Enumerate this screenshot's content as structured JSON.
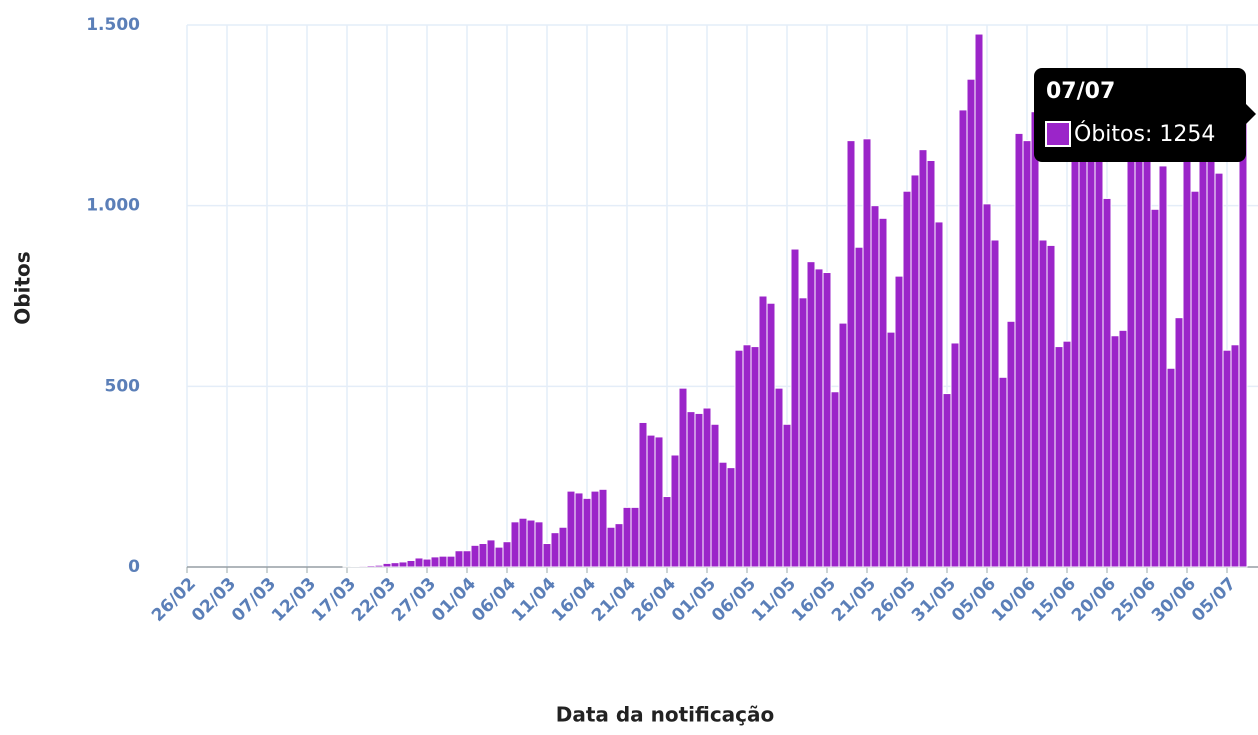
{
  "chart_data": {
    "type": "bar",
    "y_label": "Obitos",
    "x_label": "Data da notificação",
    "categories": [
      "26/02",
      null,
      null,
      null,
      null,
      "02/03",
      null,
      null,
      null,
      null,
      "07/03",
      null,
      null,
      null,
      null,
      "12/03",
      null,
      null,
      null,
      null,
      "17/03",
      null,
      null,
      null,
      null,
      "22/03",
      null,
      null,
      null,
      null,
      "27/03",
      null,
      null,
      null,
      null,
      "01/04",
      null,
      null,
      null,
      null,
      "06/04",
      null,
      null,
      null,
      null,
      "11/04",
      null,
      null,
      null,
      null,
      "16/04",
      null,
      null,
      null,
      null,
      "21/04",
      null,
      null,
      null,
      null,
      "26/04",
      null,
      null,
      null,
      null,
      "01/05",
      null,
      null,
      null,
      null,
      "06/05",
      null,
      null,
      null,
      null,
      "11/05",
      null,
      null,
      null,
      null,
      "16/05",
      null,
      null,
      null,
      null,
      "21/05",
      null,
      null,
      null,
      null,
      "26/05",
      null,
      null,
      null,
      null,
      "31/05",
      null,
      null,
      null,
      null,
      "05/06",
      null,
      null,
      null,
      null,
      "10/06",
      null,
      null,
      null,
      null,
      "15/06",
      null,
      null,
      null,
      null,
      "20/06",
      null,
      null,
      null,
      null,
      "25/06",
      null,
      null,
      null,
      null,
      "30/06",
      null,
      null,
      null,
      null,
      "05/07",
      null,
      null
    ],
    "series": [
      {
        "name": "Óbitos",
        "color": "#9b25c9",
        "values": [
          0,
          0,
          0,
          0,
          0,
          0,
          0,
          0,
          0,
          0,
          0,
          0,
          0,
          0,
          0,
          0,
          0,
          0,
          0,
          0,
          1,
          2,
          3,
          4,
          5,
          10,
          12,
          14,
          18,
          25,
          22,
          28,
          30,
          30,
          45,
          45,
          60,
          65,
          75,
          55,
          70,
          125,
          135,
          130,
          125,
          65,
          95,
          110,
          210,
          205,
          190,
          210,
          215,
          110,
          120,
          165,
          165,
          400,
          365,
          360,
          195,
          310,
          495,
          430,
          425,
          440,
          395,
          290,
          275,
          600,
          615,
          610,
          750,
          730,
          495,
          395,
          880,
          745,
          845,
          825,
          815,
          485,
          675,
          1180,
          885,
          1185,
          1000,
          965,
          650,
          805,
          1040,
          1085,
          1155,
          1125,
          955,
          480,
          620,
          1265,
          1350,
          1475,
          1005,
          905,
          525,
          680,
          1200,
          1180,
          1260,
          905,
          890,
          610,
          625,
          1180,
          1250,
          1200,
          1180,
          1020,
          640,
          655,
          1200,
          1250,
          1180,
          990,
          1110,
          550,
          690,
          1180,
          1040,
          1220,
          1200,
          1090,
          600,
          615,
          1254
        ]
      }
    ],
    "ylim": [
      0,
      1500
    ],
    "yticks": [
      0,
      500,
      {
        "value": 1000,
        "label": "1.000"
      },
      {
        "value": 1500,
        "label": "1.500"
      }
    ],
    "grid": true,
    "tooltip": {
      "title": "07/07",
      "text": "Óbitos: 1254"
    }
  }
}
